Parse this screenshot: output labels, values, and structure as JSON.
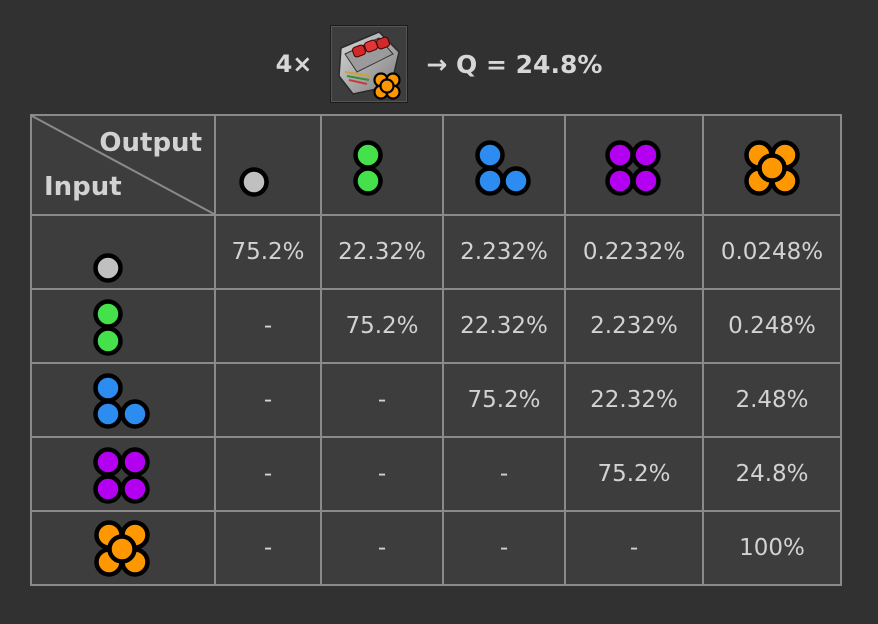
{
  "header": {
    "multiplier": "4×",
    "module_icon": "quality-module-icon",
    "result": "→ Q = 24.8%"
  },
  "table": {
    "corner_output_label": "Output",
    "corner_input_label": "Input",
    "tiers": [
      {
        "name": "normal",
        "color": "#c0c0c0",
        "icon": "quality-tier-1-icon"
      },
      {
        "name": "uncommon",
        "color": "#44e14b",
        "icon": "quality-tier-2-icon"
      },
      {
        "name": "rare",
        "color": "#2d8cf0",
        "icon": "quality-tier-3-icon"
      },
      {
        "name": "epic",
        "color": "#b400f0",
        "icon": "quality-tier-4-icon"
      },
      {
        "name": "legendary",
        "color": "#ff9800",
        "icon": "quality-tier-5-icon"
      }
    ],
    "rows": [
      [
        "75.2%",
        "22.32%",
        "2.232%",
        "0.2232%",
        "0.0248%"
      ],
      [
        "-",
        "75.2%",
        "22.32%",
        "2.232%",
        "0.248%"
      ],
      [
        "-",
        "-",
        "75.2%",
        "22.32%",
        "2.48%"
      ],
      [
        "-",
        "-",
        "-",
        "75.2%",
        "24.8%"
      ],
      [
        "-",
        "-",
        "-",
        "-",
        "100%"
      ]
    ]
  }
}
